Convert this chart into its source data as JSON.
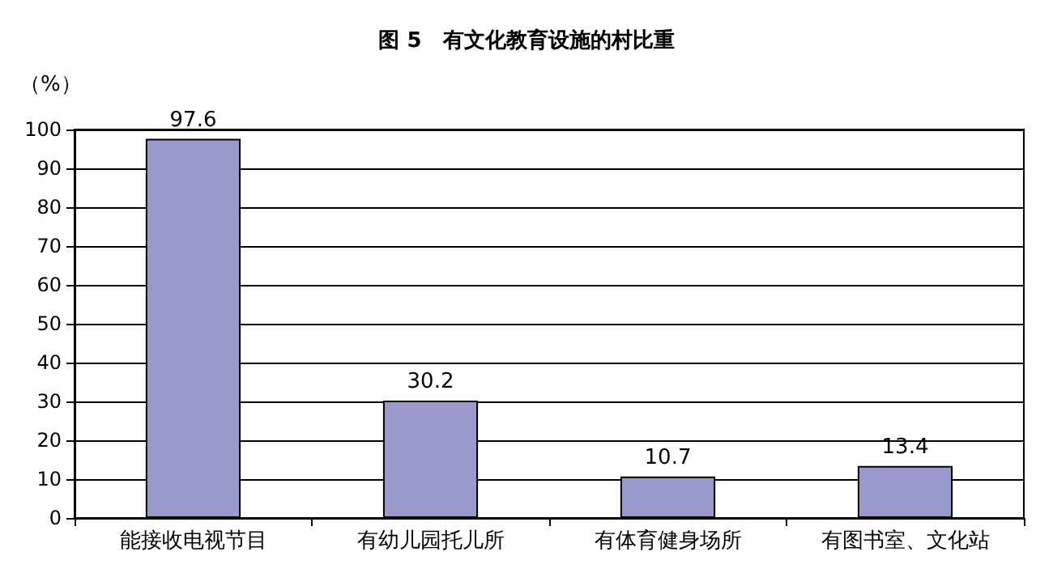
{
  "chart_data": {
    "type": "bar",
    "title": "图 5　有文化教育设施的村比重",
    "ylabel": "（%）",
    "categories": [
      "能接收电视节目",
      "有幼儿园托儿所",
      "有体育健身场所",
      "有图书室、文化站"
    ],
    "values": [
      97.6,
      30.2,
      10.7,
      13.4
    ],
    "color": "#9999cc",
    "ylim": [
      0,
      100
    ],
    "yticks": [
      0,
      10,
      20,
      30,
      40,
      50,
      60,
      70,
      80,
      90,
      100
    ],
    "grid": "y",
    "data_labels": true
  }
}
